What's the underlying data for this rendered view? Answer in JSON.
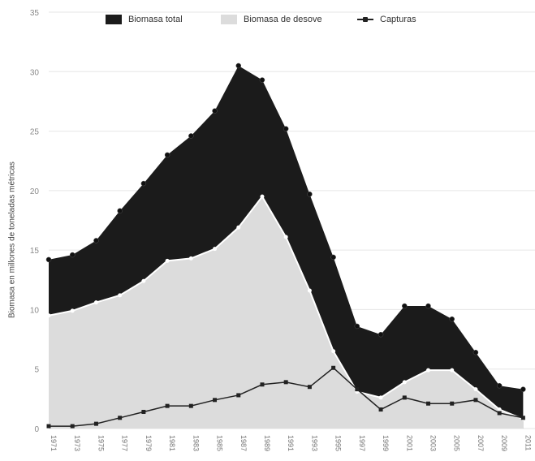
{
  "chart_data": {
    "type": "area",
    "title": "",
    "xlabel": "",
    "ylabel": "Biomasa en millones de toneladas métricas",
    "ylim": [
      0,
      35
    ],
    "yticks": [
      0,
      5,
      10,
      15,
      20,
      25,
      30,
      35
    ],
    "xlim": [
      1971,
      2012
    ],
    "x": [
      1971,
      1973,
      1975,
      1977,
      1979,
      1981,
      1983,
      1985,
      1987,
      1989,
      1991,
      1993,
      1995,
      1997,
      1999,
      2001,
      2003,
      2005,
      2007,
      2009,
      2011
    ],
    "xtick_labels": [
      "1971",
      "1973",
      "1975",
      "1977",
      "1979",
      "1981",
      "1983",
      "1985",
      "1987",
      "1989",
      "1991",
      "1993",
      "1995",
      "1997",
      "1999",
      "2001",
      "2003",
      "2005",
      "2007",
      "2009",
      "2011"
    ],
    "series": [
      {
        "name": "Biomasa total",
        "type": "area",
        "color": "#1b1b1b",
        "values": [
          14.2,
          14.6,
          15.8,
          18.3,
          20.6,
          23.0,
          24.6,
          26.7,
          30.5,
          29.3,
          25.2,
          19.7,
          14.4,
          8.6,
          7.9,
          10.3,
          10.3,
          9.2,
          6.4,
          3.6,
          3.3
        ]
      },
      {
        "name": "Biomasa de desove",
        "type": "area",
        "color": "#dcdcdc",
        "values": [
          9.5,
          9.9,
          10.6,
          11.2,
          12.4,
          14.1,
          14.3,
          15.1,
          16.9,
          19.5,
          16.1,
          11.6,
          6.5,
          3.1,
          2.6,
          3.9,
          4.9,
          4.9,
          3.3,
          1.6,
          0.8
        ]
      },
      {
        "name": "Capturas",
        "type": "line",
        "color": "#222222",
        "values": [
          0.2,
          0.2,
          0.4,
          0.9,
          1.4,
          1.9,
          1.9,
          2.4,
          2.8,
          3.7,
          3.9,
          3.5,
          5.1,
          3.3,
          1.6,
          2.6,
          2.1,
          2.1,
          2.4,
          1.3,
          0.9
        ]
      }
    ],
    "grid": true,
    "legend_position": "top"
  }
}
